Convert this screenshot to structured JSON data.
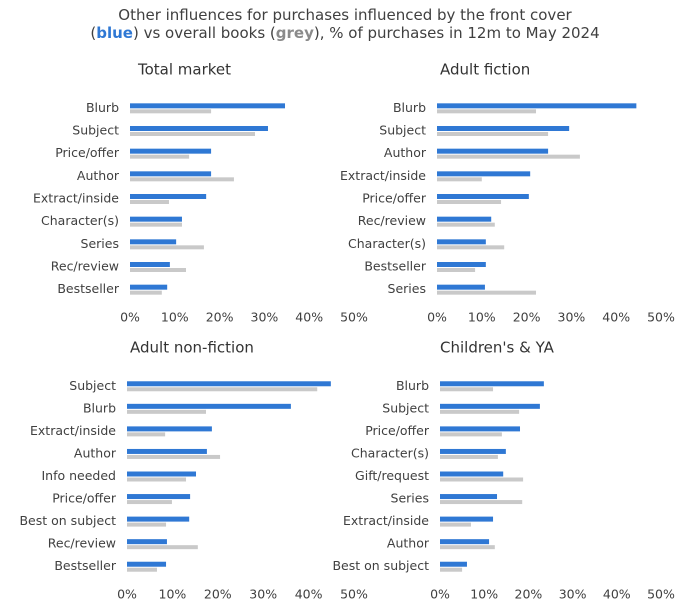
{
  "title_parts": [
    "Other influences for purchases influenced by the front cover",
    "(",
    "blue",
    ") vs overall books (",
    "grey",
    "), % of purchases in 12m to May 2024"
  ],
  "chart_data": [
    {
      "type": "hbar",
      "title": "Total market",
      "categories": [
        "Blurb",
        "Subject",
        "Price/offer",
        "Author",
        "Extract/inside",
        "Character(s)",
        "Series",
        "Rec/review",
        "Bestseller"
      ],
      "series": [
        {
          "color": "#2f78d4",
          "values": [
            34.6,
            30.8,
            18.1,
            18.1,
            17.0,
            11.6,
            10.3,
            8.9,
            8.3
          ]
        },
        {
          "color": "#c9c9c9",
          "values": [
            18.1,
            27.9,
            13.2,
            23.2,
            8.7,
            11.6,
            16.5,
            12.5,
            7.1
          ]
        }
      ],
      "xlim": [
        0,
        50
      ],
      "xticks": [
        {
          "value": 0,
          "label": "0%"
        },
        {
          "value": 10,
          "label": "10%"
        },
        {
          "value": 20,
          "label": "20%"
        },
        {
          "value": 30,
          "label": "30%"
        },
        {
          "value": 40,
          "label": "40%"
        },
        {
          "value": 50,
          "label": "50%"
        }
      ]
    },
    {
      "type": "hbar",
      "title": "Adult fiction",
      "categories": [
        "Blurb",
        "Subject",
        "Author",
        "Extract/inside",
        "Price/offer",
        "Rec/review",
        "Character(s)",
        "Bestseller",
        "Series"
      ],
      "series": [
        {
          "color": "#2f78d4",
          "values": [
            44.5,
            29.5,
            24.8,
            20.8,
            20.5,
            12.1,
            10.9,
            10.9,
            10.7
          ]
        },
        {
          "color": "#c9c9c9",
          "values": [
            22.1,
            24.8,
            31.9,
            10.0,
            14.3,
            12.9,
            15.0,
            8.5,
            22.1
          ]
        }
      ],
      "xlim": [
        0,
        50
      ],
      "xticks": [
        {
          "value": 0,
          "label": "0%"
        },
        {
          "value": 10,
          "label": "10%"
        },
        {
          "value": 20,
          "label": "20%"
        },
        {
          "value": 30,
          "label": "30%"
        },
        {
          "value": 40,
          "label": "40%"
        },
        {
          "value": 50,
          "label": "50%"
        }
      ]
    },
    {
      "type": "hbar",
      "title": "Adult non-fiction",
      "categories": [
        "Subject",
        "Blurb",
        "Extract/inside",
        "Author",
        "Info needed",
        "Price/offer",
        "Best on subject",
        "Rec/review",
        "Bestseller"
      ],
      "series": [
        {
          "color": "#2f78d4",
          "values": [
            44.9,
            36.1,
            18.7,
            17.6,
            15.2,
            13.9,
            13.7,
            8.8,
            8.6
          ]
        },
        {
          "color": "#c9c9c9",
          "values": [
            41.9,
            17.4,
            8.4,
            20.5,
            13.0,
            9.9,
            8.6,
            15.6,
            6.6
          ]
        }
      ],
      "xlim": [
        0,
        50
      ],
      "xticks": [
        {
          "value": 0,
          "label": "0%"
        },
        {
          "value": 10,
          "label": "10%"
        },
        {
          "value": 20,
          "label": "20%"
        },
        {
          "value": 30,
          "label": "30%"
        },
        {
          "value": 40,
          "label": "40%"
        },
        {
          "value": 50,
          "label": "50%"
        }
      ]
    },
    {
      "type": "hbar",
      "title": "Children's & YA",
      "categories": [
        "Blurb",
        "Subject",
        "Price/offer",
        "Character(s)",
        "Gift/request",
        "Series",
        "Extract/inside",
        "Author",
        "Best on subject"
      ],
      "series": [
        {
          "color": "#2f78d4",
          "values": [
            23.5,
            22.6,
            18.1,
            14.9,
            14.3,
            12.9,
            12.0,
            11.1,
            6.1
          ]
        },
        {
          "color": "#c9c9c9",
          "values": [
            12.0,
            17.9,
            14.0,
            13.1,
            18.8,
            18.6,
            7.0,
            12.4,
            5.0
          ]
        }
      ],
      "xlim": [
        0,
        50
      ],
      "xticks": [
        {
          "value": 0,
          "label": "0%"
        },
        {
          "value": 10,
          "label": "10%"
        },
        {
          "value": 20,
          "label": "20%"
        },
        {
          "value": 30,
          "label": "30%"
        },
        {
          "value": 40,
          "label": "40%"
        },
        {
          "value": 50,
          "label": "50%"
        }
      ]
    }
  ]
}
